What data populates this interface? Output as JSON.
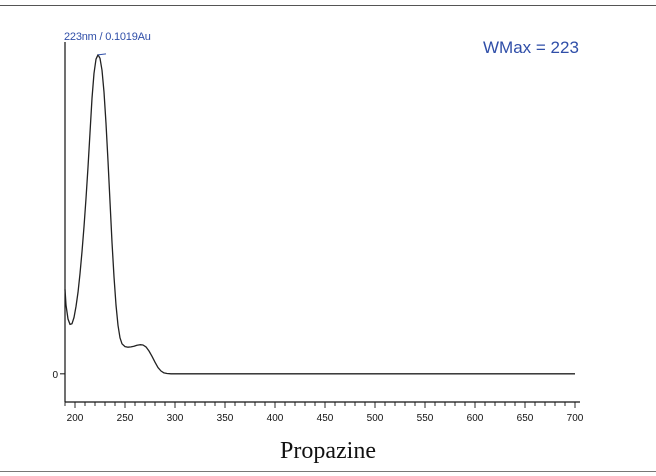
{
  "caption": "Propazine",
  "chart_data": {
    "type": "line",
    "title": "",
    "xlabel": "",
    "ylabel": "",
    "xlim": [
      190,
      705
    ],
    "ylim": [
      -0.009,
      0.106
    ],
    "grid": false,
    "x_ticks": [
      200,
      250,
      300,
      350,
      400,
      450,
      500,
      550,
      600,
      650,
      700
    ],
    "y_ticks": [
      0
    ],
    "peak_annotation": "223nm / 0.1019Au",
    "wmax_annotation": "WMax = 223",
    "series": [
      {
        "color": "#222222",
        "points": [
          [
            190,
            0.027
          ],
          [
            191,
            0.022
          ],
          [
            193,
            0.0175
          ],
          [
            195,
            0.0158
          ],
          [
            197,
            0.016
          ],
          [
            199,
            0.018
          ],
          [
            201,
            0.0215
          ],
          [
            203,
            0.026
          ],
          [
            205,
            0.032
          ],
          [
            207,
            0.039
          ],
          [
            209,
            0.047
          ],
          [
            211,
            0.056
          ],
          [
            213,
            0.066
          ],
          [
            215,
            0.077
          ],
          [
            217,
            0.088
          ],
          [
            219,
            0.096
          ],
          [
            221,
            0.1005
          ],
          [
            223,
            0.1019
          ],
          [
            225,
            0.1008
          ],
          [
            227,
            0.097
          ],
          [
            229,
            0.09
          ],
          [
            231,
            0.08
          ],
          [
            233,
            0.068
          ],
          [
            235,
            0.055
          ],
          [
            237,
            0.042
          ],
          [
            239,
            0.031
          ],
          [
            241,
            0.022
          ],
          [
            243,
            0.0155
          ],
          [
            245,
            0.0115
          ],
          [
            247,
            0.0096
          ],
          [
            250,
            0.0087
          ],
          [
            253,
            0.0085
          ],
          [
            256,
            0.0086
          ],
          [
            259,
            0.0088
          ],
          [
            262,
            0.0091
          ],
          [
            265,
            0.0093
          ],
          [
            268,
            0.0092
          ],
          [
            271,
            0.0086
          ],
          [
            274,
            0.0073
          ],
          [
            277,
            0.0056
          ],
          [
            280,
            0.0037
          ],
          [
            283,
            0.002
          ],
          [
            286,
            0.0009
          ],
          [
            289,
            0.0003
          ],
          [
            292,
            0.0001
          ],
          [
            296,
            0.0
          ],
          [
            330,
            0.0
          ],
          [
            400,
            0.0
          ],
          [
            500,
            0.0
          ],
          [
            600,
            0.0
          ],
          [
            700,
            0.0
          ]
        ]
      }
    ]
  }
}
